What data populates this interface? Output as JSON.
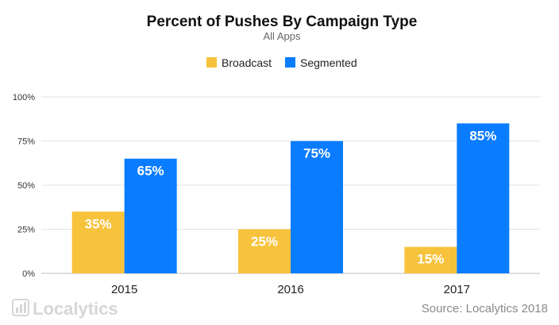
{
  "chart_data": {
    "type": "bar",
    "title": "Percent of Pushes By Campaign Type",
    "subtitle": "All Apps",
    "categories": [
      "2015",
      "2016",
      "2017"
    ],
    "series": [
      {
        "name": "Broadcast",
        "color": "#f7c33c",
        "values": [
          35,
          25,
          15
        ]
      },
      {
        "name": "Segmented",
        "color": "#0a7cff",
        "values": [
          65,
          75,
          85
        ]
      }
    ],
    "data_labels": [
      [
        "35%",
        "25%",
        "15%"
      ],
      [
        "65%",
        "75%",
        "85%"
      ]
    ],
    "y_ticks": [
      {
        "value": 0,
        "label": "0%"
      },
      {
        "value": 25,
        "label": "25%"
      },
      {
        "value": 50,
        "label": "50%"
      },
      {
        "value": 75,
        "label": "75%"
      },
      {
        "value": 100,
        "label": "100%"
      }
    ],
    "ylim": [
      0,
      100
    ],
    "grid": true,
    "legend_position": "top-center"
  },
  "footer": {
    "brand": "Localytics",
    "source": "Source: Localytics 2018"
  }
}
